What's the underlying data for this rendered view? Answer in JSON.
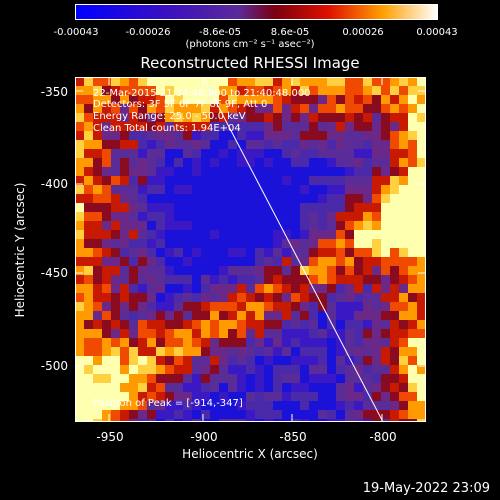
{
  "colorbar": {
    "ticks": [
      "-0.00043",
      "-0.00026",
      "-8.6e-05",
      "8.6e-05",
      "0.00026",
      "0.00043"
    ],
    "unit_label": "(photons cm⁻² s⁻¹ asec⁻²)"
  },
  "title": "Reconstructed RHESSI Image",
  "annotations": {
    "time": "22-Mar-2015 21:34:48.000 to 21:40:48.000",
    "detectors": "Detectors: 3F 5F 6F 7F 8F 9F, Att 0",
    "energy": "Energy Range: 25.0 - 50.0 keV",
    "clean": "Clean    Total counts: 1.94E+04",
    "peak": "Position of Peak = [-914,-347]"
  },
  "axes": {
    "xlabel": "Heliocentric X (arcsec)",
    "ylabel": "Heliocentric Y (arcsec)",
    "xticks": [
      "-950",
      "-900",
      "-850",
      "-800"
    ],
    "yticks": [
      "-350",
      "-400",
      "-450",
      "-500"
    ]
  },
  "footer": "19-May-2022 23:09",
  "colors": {
    "background": "#000000",
    "text": "#ffffff",
    "colormap": [
      "#0000ff",
      "#3a0090",
      "#6a2ab0",
      "#c40000",
      "#ff6a00",
      "#ffc000",
      "#ffffc0"
    ]
  }
}
